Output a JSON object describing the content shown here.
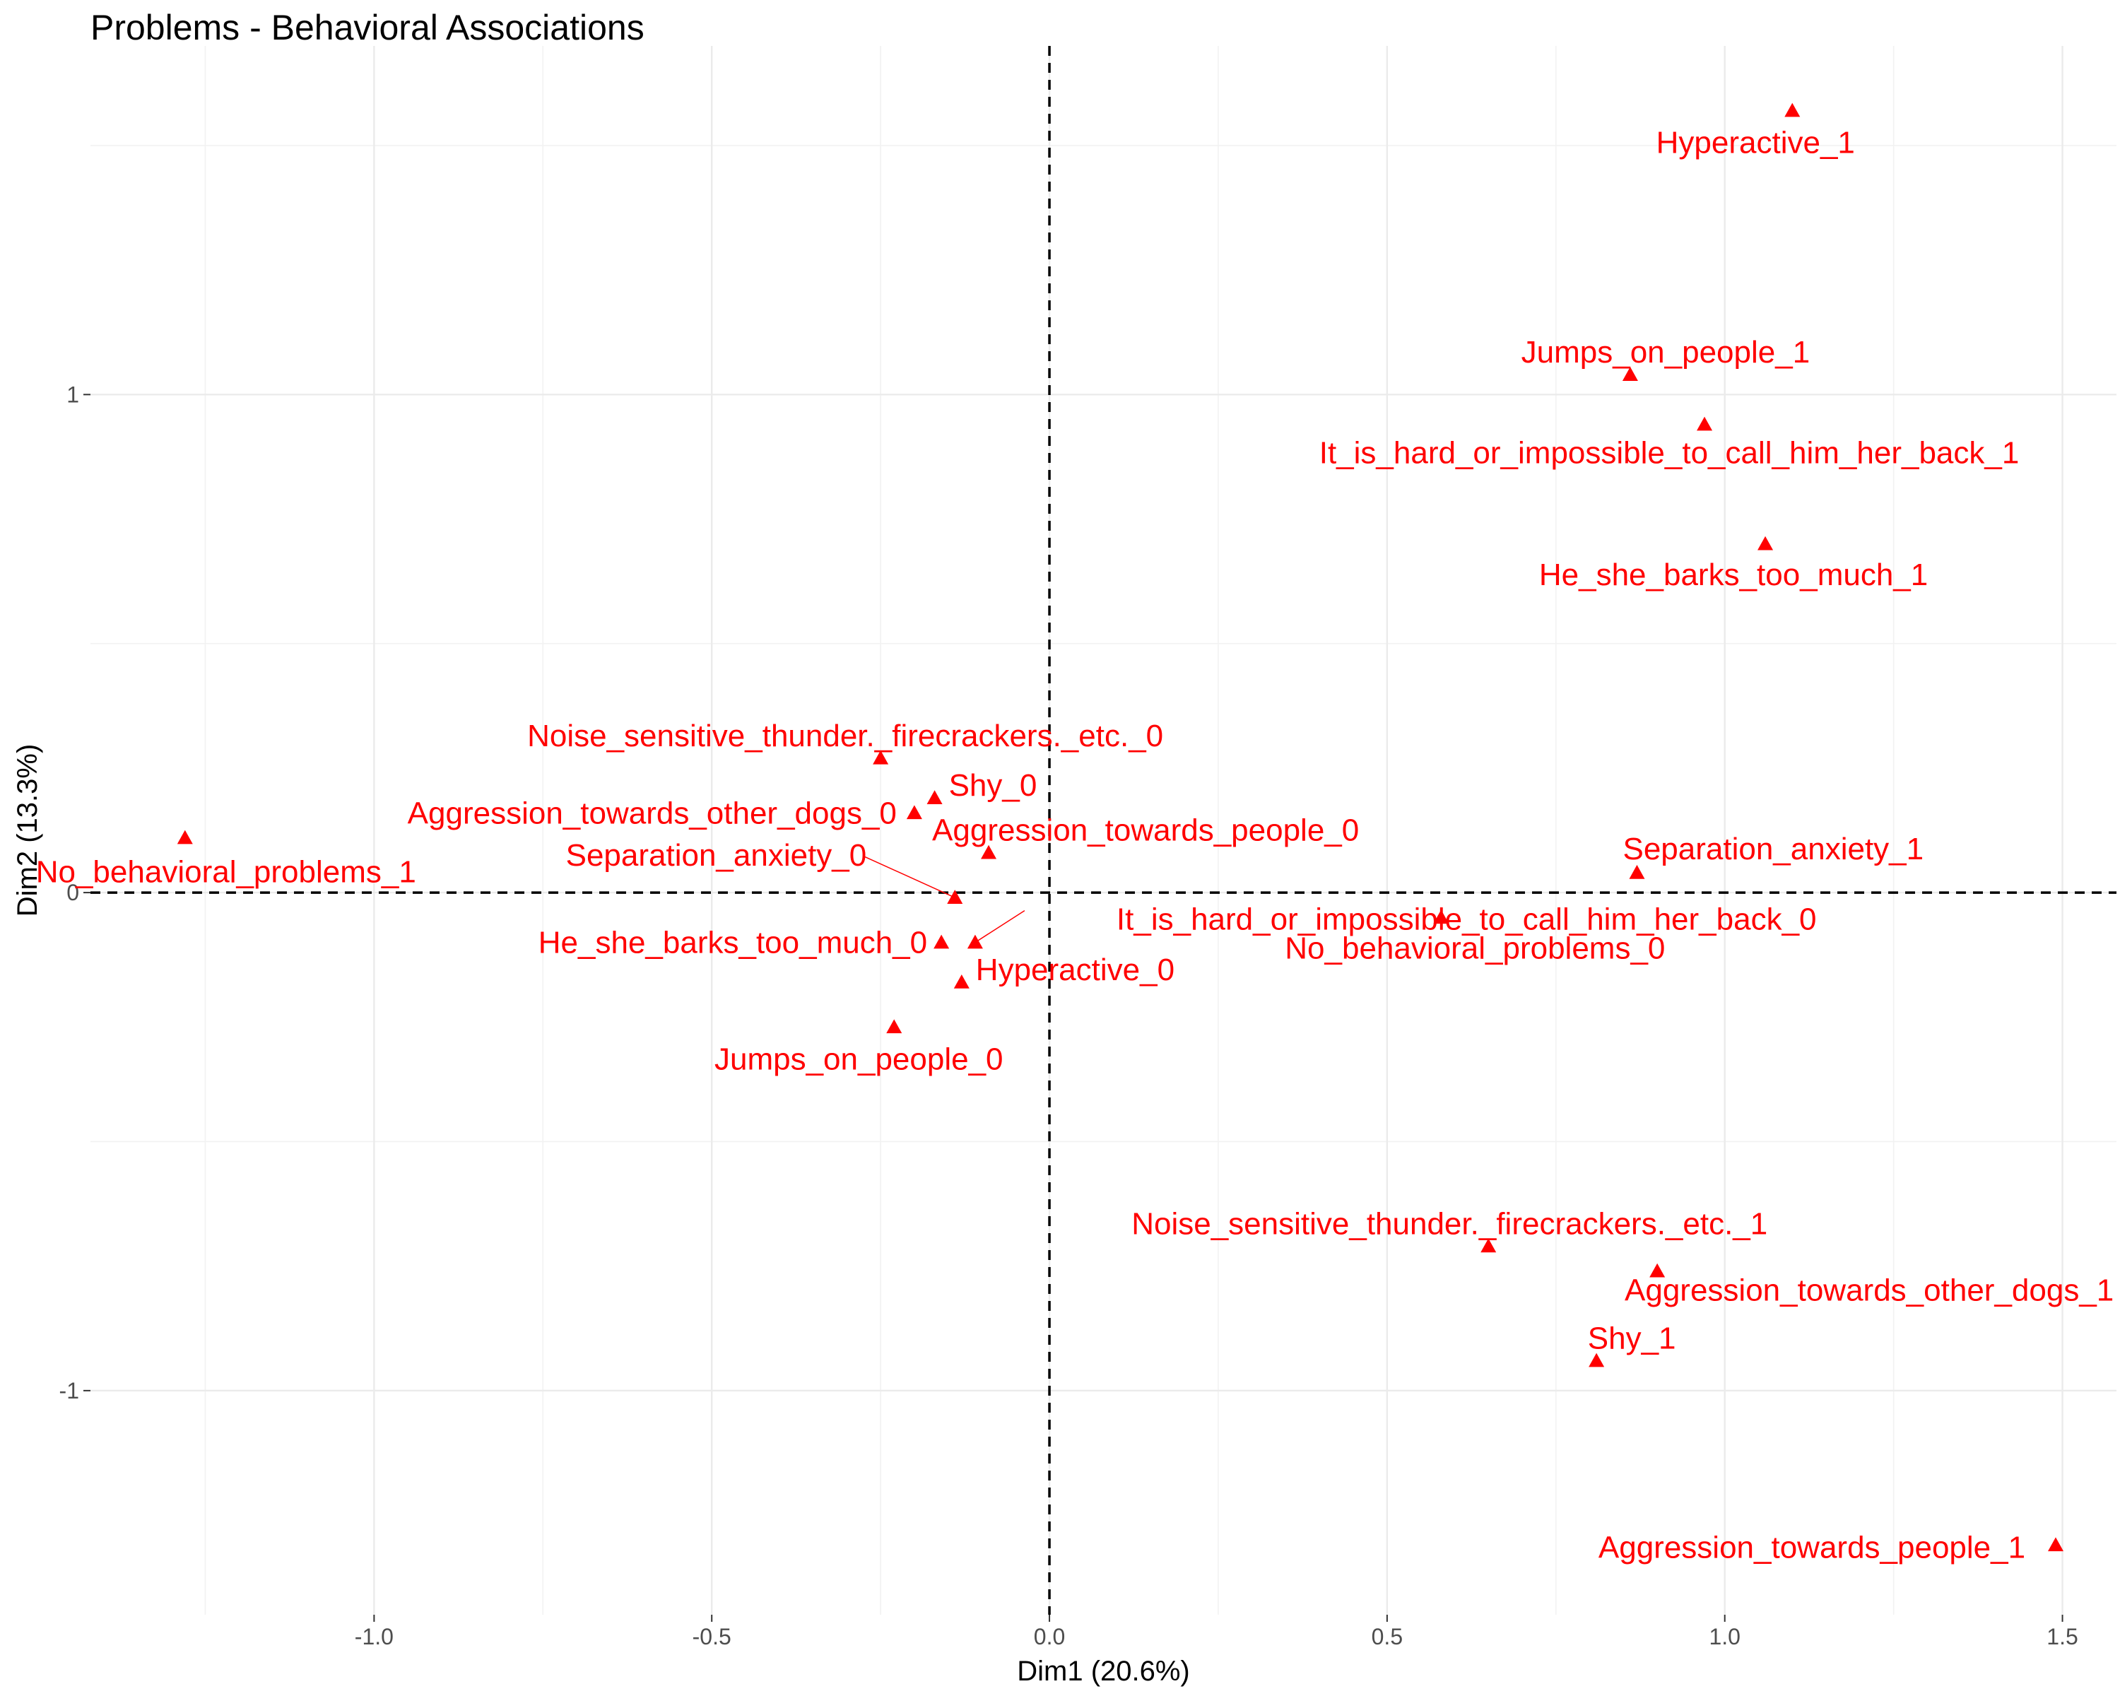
{
  "chart_data": {
    "type": "scatter",
    "title": "Problems - Behavioral Associations",
    "xlabel": "Dim1 (20.6%)",
    "ylabel": "Dim2 (13.3%)",
    "xlim": [
      -1.42,
      1.58
    ],
    "ylim": [
      -1.45,
      1.7
    ],
    "x_ticks": [
      -1.0,
      -0.5,
      0.0,
      0.5,
      1.0,
      1.5
    ],
    "x_tick_labels": [
      "-1.0",
      "-0.5",
      "0.0",
      "0.5",
      "1.0",
      "1.5"
    ],
    "y_ticks": [
      -1,
      0,
      1
    ],
    "y_tick_labels": [
      "-1",
      "0",
      "1"
    ],
    "grid": true,
    "reference_lines": {
      "x": 0,
      "y": 0,
      "style": "dashed"
    },
    "marker": "triangle",
    "color": "#ff0000",
    "points": [
      {
        "label": "Hyperactive_1",
        "x": 1.1,
        "y": 1.57
      },
      {
        "label": "Jumps_on_people_1",
        "x": 0.86,
        "y": 1.04
      },
      {
        "label": "It_is_hard_or_impossible_to_call_him_her_back_1",
        "x": 0.97,
        "y": 0.94
      },
      {
        "label": "He_she_barks_too_much_1",
        "x": 1.06,
        "y": 0.7
      },
      {
        "label": "Noise_sensitive_thunder._firecrackers._etc._0",
        "x": -0.25,
        "y": 0.27
      },
      {
        "label": "Shy_0",
        "x": -0.17,
        "y": 0.19
      },
      {
        "label": "Aggression_towards_other_dogs_0",
        "x": -0.2,
        "y": 0.16
      },
      {
        "label": "No_behavioral_problems_1",
        "x": -1.28,
        "y": 0.11
      },
      {
        "label": "Aggression_towards_people_0",
        "x": -0.09,
        "y": 0.08
      },
      {
        "label": "Separation_anxiety_0",
        "x": -0.14,
        "y": -0.01
      },
      {
        "label": "Separation_anxiety_1",
        "x": 0.87,
        "y": 0.04
      },
      {
        "label": "It_is_hard_or_impossible_to_call_him_her_back_0",
        "x": -0.11,
        "y": -0.1
      },
      {
        "label": "No_behavioral_problems_0",
        "x": 0.58,
        "y": -0.05
      },
      {
        "label": "He_she_barks_too_much_0",
        "x": -0.16,
        "y": -0.1
      },
      {
        "label": "Hyperactive_0",
        "x": -0.13,
        "y": -0.18
      },
      {
        "label": "Jumps_on_people_0",
        "x": -0.23,
        "y": -0.27
      },
      {
        "label": "Noise_sensitive_thunder._firecrackers._etc._1",
        "x": 0.65,
        "y": -0.71
      },
      {
        "label": "Aggression_towards_other_dogs_1",
        "x": 0.9,
        "y": -0.76
      },
      {
        "label": "Shy_1",
        "x": 0.81,
        "y": -0.94
      },
      {
        "label": "Aggression_towards_people_1",
        "x": 1.49,
        "y": -1.31
      }
    ]
  }
}
